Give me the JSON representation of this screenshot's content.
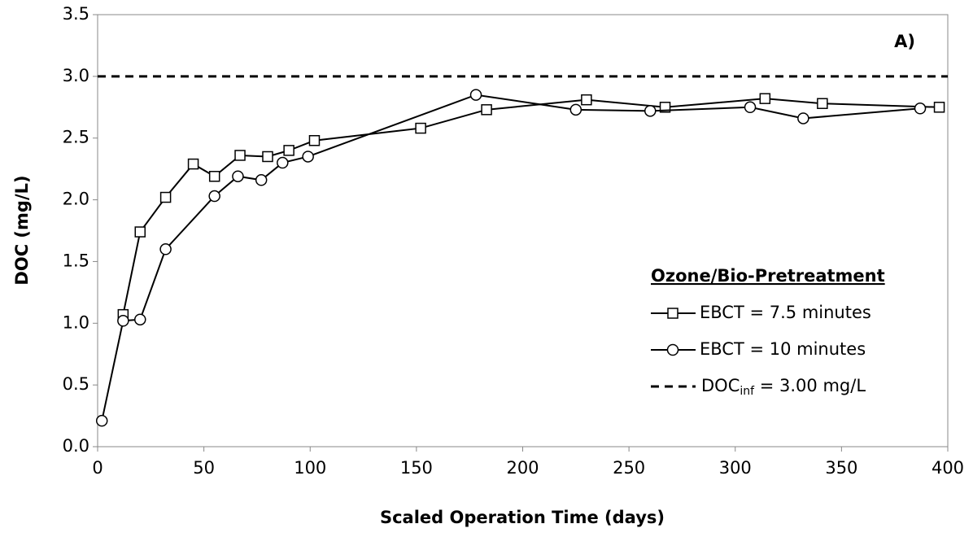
{
  "chart_data": {
    "type": "line",
    "annotation": "A)",
    "xlabel": "Scaled Operation Time (days)",
    "ylabel": "DOC (mg/L)",
    "xlim": [
      0,
      400
    ],
    "xticks": [
      0,
      50,
      100,
      150,
      200,
      250,
      300,
      350,
      400
    ],
    "ylim": [
      0,
      3.5
    ],
    "yticks": [
      {
        "value": 0,
        "label": "0.0"
      },
      {
        "value": 0.5,
        "label": "0.5"
      },
      {
        "value": 1,
        "label": "1.0"
      },
      {
        "value": 1.5,
        "label": "1.5"
      },
      {
        "value": 2,
        "label": "2.0"
      },
      {
        "value": 2.5,
        "label": "2.5"
      },
      {
        "value": 3,
        "label": "3.0"
      },
      {
        "value": 3.5,
        "label": "3.5"
      }
    ],
    "legend_title": "Ozone/Bio-Pretreatment",
    "legend_position": "lower right",
    "series": [
      {
        "name": "EBCT = 7.5 minutes",
        "color": "#000000",
        "marker": "square",
        "x": [
          12,
          20,
          32,
          45,
          55,
          67,
          80,
          90,
          102,
          152,
          183,
          230,
          267,
          314,
          341,
          396
        ],
        "values": [
          1.07,
          1.74,
          2.02,
          2.29,
          2.19,
          2.36,
          2.35,
          2.4,
          2.48,
          2.58,
          2.73,
          2.81,
          2.75,
          2.82,
          2.78,
          2.75
        ]
      },
      {
        "name": "EBCT = 10 minutes",
        "color": "#000000",
        "marker": "circle",
        "x": [
          2,
          12,
          20,
          32,
          55,
          66,
          77,
          87,
          99,
          178,
          225,
          260,
          307,
          332,
          387
        ],
        "values": [
          0.21,
          1.02,
          1.03,
          1.6,
          2.03,
          2.19,
          2.16,
          2.3,
          2.35,
          2.85,
          2.73,
          2.72,
          2.75,
          2.66,
          2.74
        ]
      }
    ],
    "reference_line": {
      "value": 3.0,
      "label_parts": [
        "DOC",
        "inf",
        " = 3.00 mg/L"
      ],
      "color": "#000000",
      "dashed": true
    }
  }
}
